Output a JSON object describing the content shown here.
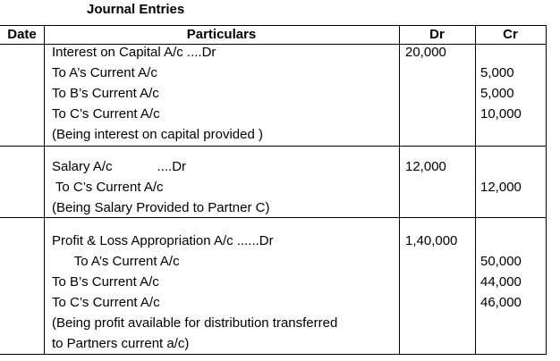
{
  "title": "Journal Entries",
  "headers": {
    "date": "Date",
    "particulars": "Particulars",
    "dr": "Dr",
    "cr": "Cr"
  },
  "entries": [
    {
      "particulars": [
        "Interest on Capital A/c ....Dr",
        "To A’s Current A/c",
        "To B’s Current A/c",
        "To C’s Current A/c",
        "(Being interest on capital provided )"
      ],
      "dr": [
        "20,000",
        "",
        "",
        "",
        ""
      ],
      "cr": [
        "",
        "5,000",
        "5,000",
        "10,000",
        ""
      ]
    },
    {
      "particulars": [
        "Salary A/c            ....Dr",
        " To C’s Current A/c",
        "(Being Salary Provided to Partner C)"
      ],
      "dr": [
        "12,000",
        "",
        ""
      ],
      "cr": [
        "",
        "12,000",
        ""
      ]
    },
    {
      "particulars": [
        "Profit & Loss Appropriation A/c ......Dr",
        "      To A’s Current A/c",
        "To B’s Current A/c",
        "To C’s Current A/c",
        "(Being profit available for distribution transferred",
        "to Partners current a/c)"
      ],
      "dr": [
        "1,40,000",
        "",
        "",
        "",
        "",
        ""
      ],
      "cr": [
        "",
        "50,000",
        "44,000",
        "46,000",
        "",
        ""
      ]
    }
  ]
}
